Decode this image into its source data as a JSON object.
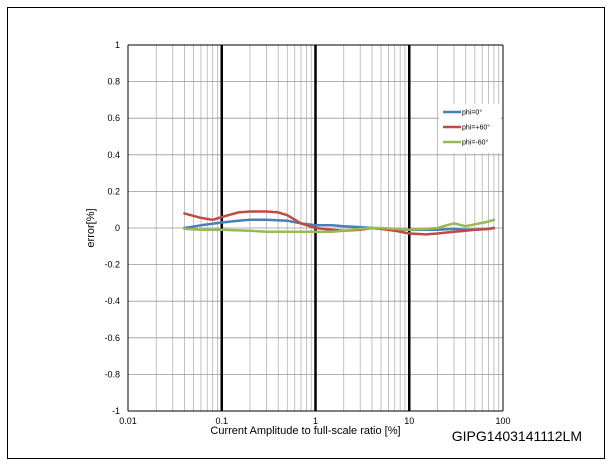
{
  "figure_id": "GIPG1403141112LM",
  "chart_data": {
    "type": "line",
    "title": "",
    "xlabel": "Current Amplitude to full-scale ratio [%]",
    "ylabel": "error[%]",
    "x_scale": "log",
    "xlim": [
      0.01,
      100
    ],
    "ylim": [
      -1,
      1
    ],
    "x_ticks": [
      0.01,
      0.1,
      1,
      10,
      100
    ],
    "x_tick_labels": [
      "0.01",
      "0.1",
      "1",
      "10",
      "100"
    ],
    "y_ticks": [
      -1,
      -0.8,
      -0.6,
      -0.4,
      -0.2,
      0,
      0.2,
      0.4,
      0.6,
      0.8,
      1
    ],
    "y_tick_labels": [
      "-1",
      "-0.8",
      "-0.6",
      "-0.4",
      "-0.2",
      "0",
      "0.2",
      "0.4",
      "0.6",
      "0.8",
      "1"
    ],
    "grid": true,
    "legend_position": "right",
    "series": [
      {
        "name": "phi=0°",
        "color": "#4a7ebb",
        "x": [
          0.04,
          0.06,
          0.1,
          0.15,
          0.2,
          0.3,
          0.5,
          0.7,
          1,
          1.5,
          2,
          3,
          4,
          5,
          7,
          10,
          15,
          20,
          30,
          40,
          50,
          70,
          80
        ],
        "y": [
          0.0,
          0.015,
          0.03,
          0.04,
          0.045,
          0.045,
          0.04,
          0.025,
          0.015,
          0.015,
          0.01,
          0.005,
          0.0,
          -0.005,
          -0.01,
          -0.01,
          -0.01,
          -0.01,
          -0.005,
          -0.01,
          -0.01,
          -0.005,
          0.0
        ]
      },
      {
        "name": "phi=+60°",
        "color": "#be4b48",
        "x": [
          0.04,
          0.06,
          0.08,
          0.1,
          0.15,
          0.2,
          0.3,
          0.4,
          0.5,
          0.7,
          1,
          1.5,
          2,
          3,
          4,
          5,
          7,
          10,
          15,
          20,
          30,
          40,
          50,
          70,
          80
        ],
        "y": [
          0.08,
          0.055,
          0.045,
          0.06,
          0.085,
          0.09,
          0.09,
          0.085,
          0.07,
          0.025,
          0.0,
          -0.01,
          -0.015,
          -0.01,
          0.0,
          -0.005,
          -0.015,
          -0.03,
          -0.035,
          -0.03,
          -0.02,
          -0.015,
          -0.01,
          -0.005,
          0.0
        ]
      },
      {
        "name": "phi=-60°",
        "color": "#98b954",
        "x": [
          0.04,
          0.06,
          0.1,
          0.2,
          0.3,
          0.5,
          0.7,
          1,
          1.5,
          2,
          3,
          4,
          5,
          7,
          10,
          15,
          20,
          25,
          30,
          40,
          50,
          70,
          80
        ],
        "y": [
          -0.005,
          -0.01,
          -0.01,
          -0.015,
          -0.02,
          -0.02,
          -0.02,
          -0.02,
          -0.02,
          -0.015,
          -0.005,
          0.0,
          0.0,
          -0.005,
          -0.01,
          -0.005,
          0.0,
          0.015,
          0.025,
          0.01,
          0.02,
          0.035,
          0.045
        ]
      }
    ]
  }
}
